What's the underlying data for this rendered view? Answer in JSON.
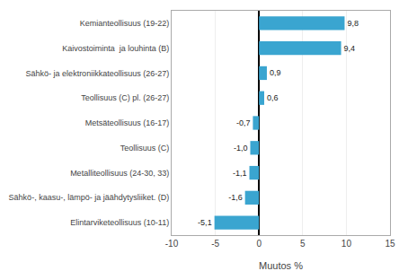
{
  "chart_data": {
    "type": "bar",
    "orientation": "horizontal",
    "categories": [
      "Elintarviketeollisuus (10-11)",
      "Sähkö-, kaasu-, lämpö- ja jäähdytysliiket. (D)",
      "Metalliteollisuus (24-30, 33)",
      "Teollisuus (C)",
      "Metsäteollisuus (16-17)",
      "Teollisuus (C) pl. (26-27)",
      "Sähkö- ja elektroniikkateollisuus (26-27)",
      "Kaivostoiminta  ja louhinta (B)",
      "Kemianteollisuus (19-22)"
    ],
    "values": [
      -5.1,
      -1.6,
      -1.1,
      -1.0,
      -0.7,
      0.6,
      0.9,
      9.4,
      9.8
    ],
    "value_labels": [
      "-5,1",
      "-1,6",
      "-1,1",
      "-1,0",
      "-0,7",
      "0,6",
      "0,9",
      "9,4",
      "9,8"
    ],
    "data_labels": true,
    "color": "#3aa5d0",
    "xlabel": "Muutos %",
    "xlim": [
      -10,
      15
    ],
    "xticks": [
      -10,
      -5,
      0,
      5,
      10,
      15
    ],
    "grid": true
  }
}
